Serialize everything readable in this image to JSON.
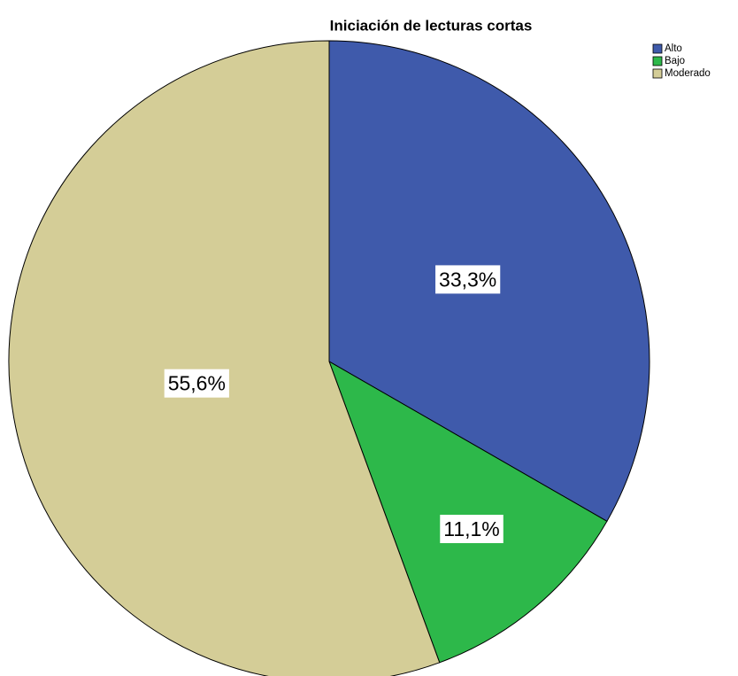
{
  "chart_data": {
    "type": "pie",
    "title": "Iniciación de lecturas cortas",
    "categories": [
      "Alto",
      "Bajo",
      "Moderado"
    ],
    "values": [
      33.3,
      11.1,
      55.6
    ],
    "value_labels": [
      "33,3%",
      "11,1%",
      "55,6%"
    ],
    "colors": [
      "#3f5aab",
      "#2db84a",
      "#d4cd97"
    ],
    "legend": "top-right"
  }
}
